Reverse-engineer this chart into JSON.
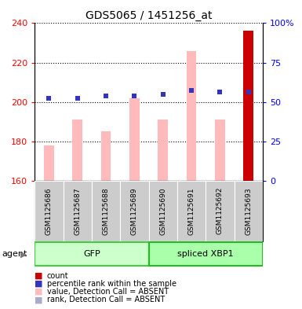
{
  "title": "GDS5065 / 1451256_at",
  "samples": [
    "GSM1125686",
    "GSM1125687",
    "GSM1125688",
    "GSM1125689",
    "GSM1125690",
    "GSM1125691",
    "GSM1125692",
    "GSM1125693"
  ],
  "groups": [
    "GFP",
    "GFP",
    "GFP",
    "GFP",
    "spliced XBP1",
    "spliced XBP1",
    "spliced XBP1",
    "spliced XBP1"
  ],
  "values_absent": [
    178,
    191,
    185,
    202,
    191,
    226,
    191,
    0
  ],
  "ranks_absent": [
    202,
    202,
    203,
    203,
    204,
    206,
    205,
    0
  ],
  "count_bar_height": 236,
  "percentile_rank": [
    202,
    202,
    203,
    203,
    204,
    206,
    205,
    205
  ],
  "base": 160,
  "ylim_left": [
    160,
    240
  ],
  "ylim_right": [
    0,
    100
  ],
  "yticks_left": [
    160,
    180,
    200,
    220,
    240
  ],
  "yticks_right": [
    0,
    25,
    50,
    75,
    100
  ],
  "ytick_labels_right": [
    "0",
    "25",
    "50",
    "75",
    "100%"
  ],
  "color_count": "#cc0000",
  "color_rank_dot": "#3333bb",
  "color_value_absent": "#ffbbbb",
  "color_rank_absent": "#aaaacc",
  "color_gfp_fill": "#ccffcc",
  "color_gfp_edge": "#44cc44",
  "color_xbp1_fill": "#aaffaa",
  "color_xbp1_edge": "#22bb22",
  "color_sample_bg": "#cccccc",
  "bar_width": 0.35,
  "legend_items": [
    {
      "color": "#cc0000",
      "label": "count"
    },
    {
      "color": "#3333bb",
      "label": "percentile rank within the sample"
    },
    {
      "color": "#ffbbbb",
      "label": "value, Detection Call = ABSENT"
    },
    {
      "color": "#aaaacc",
      "label": "rank, Detection Call = ABSENT"
    }
  ]
}
